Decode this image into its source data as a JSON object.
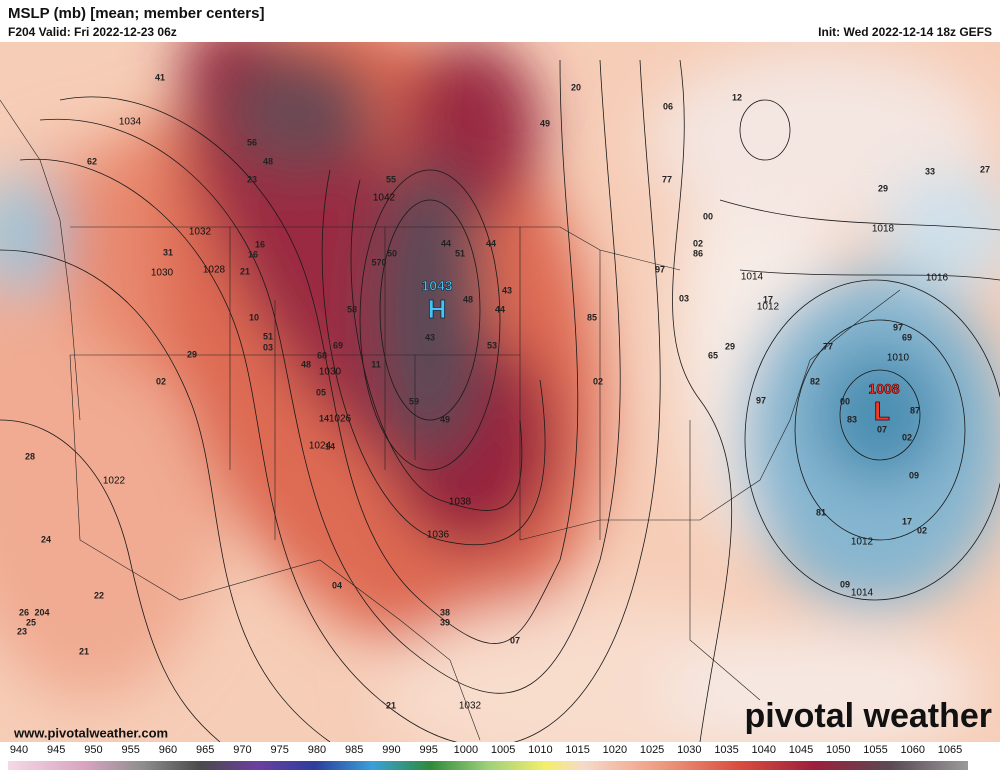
{
  "header": {
    "title": "MSLP (mb) [mean; member centers]",
    "valid": "F204 Valid: Fri 2022-12-23 06z",
    "init": "Init: Wed 2022-12-14 18z GEFS"
  },
  "centers": [
    {
      "value": "1043",
      "symbol": "H"
    },
    {
      "value": "1008",
      "symbol": "L"
    }
  ],
  "contour_labels": [
    "1034",
    "1032",
    "1030",
    "1028",
    "1042",
    "1038",
    "1036",
    "1030",
    "1026",
    "1024",
    "1022",
    "1018",
    "1016",
    "1014",
    "1012",
    "1010",
    "1012",
    "1014",
    "1032"
  ],
  "member_labels": [
    "41",
    "20",
    "49",
    "06",
    "12",
    "62",
    "56",
    "48",
    "23",
    "55",
    "77",
    "00",
    "02",
    "86",
    "29",
    "33",
    "27",
    "16",
    "16",
    "21",
    "31",
    "44",
    "44",
    "50",
    "570",
    "51",
    "43",
    "48",
    "44",
    "53",
    "43",
    "85",
    "58",
    "10",
    "51",
    "03",
    "48",
    "68",
    "69",
    "11",
    "29",
    "02",
    "05",
    "59",
    "49",
    "02",
    "97",
    "03",
    "17",
    "97",
    "69",
    "65",
    "29",
    "77",
    "82",
    "97",
    "00",
    "83",
    "87",
    "07",
    "02",
    "09",
    "17",
    "02",
    "81",
    "09",
    "04",
    "22",
    "24",
    "28",
    "26",
    "204",
    "25",
    "23",
    "21",
    "38",
    "39",
    "07",
    "21",
    "14",
    "14"
  ],
  "colorbar": {
    "ticks": [
      "940",
      "945",
      "950",
      "955",
      "960",
      "965",
      "970",
      "975",
      "980",
      "985",
      "990",
      "995",
      "1000",
      "1005",
      "1010",
      "1015",
      "1020",
      "1025",
      "1030",
      "1035",
      "1040",
      "1045",
      "1050",
      "1055",
      "1060",
      "1065"
    ]
  },
  "website": "www.pivotalweather.com",
  "logo": "pivotal weather"
}
